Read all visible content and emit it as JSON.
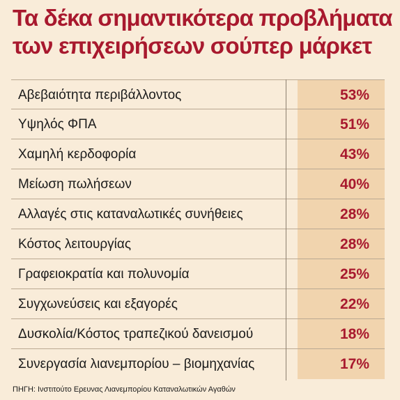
{
  "chart_data": {
    "type": "table",
    "title": "Τα δέκα σημαντικότερα προβλήματα των επιχειρήσεων σούπερ μάρκετ",
    "title_lines": [
      "Τα δέκα σημαντικότερα προβλήματα",
      "των επιχειρήσεων σούπερ μάρκετ"
    ],
    "rows": [
      {
        "label": "Αβεβαιότητα περιβάλλοντος",
        "value": 53,
        "display": "53%"
      },
      {
        "label": "Υψηλός ΦΠΑ",
        "value": 51,
        "display": "51%"
      },
      {
        "label": "Χαμηλή κερδοφορία",
        "value": 43,
        "display": "43%"
      },
      {
        "label": "Μείωση πωλήσεων",
        "value": 40,
        "display": "40%"
      },
      {
        "label": "Αλλαγές στις καταναλωτικές συνήθειες",
        "value": 28,
        "display": "28%"
      },
      {
        "label": "Κόστος λειτουργίας",
        "value": 28,
        "display": "28%"
      },
      {
        "label": "Γραφειοκρατία και πολυνομία",
        "value": 25,
        "display": "25%"
      },
      {
        "label": "Συγχωνεύσεις και εξαγορές",
        "value": 22,
        "display": "22%"
      },
      {
        "label": "Δυσκολία/Κόστος τραπεζικού δανεισμού",
        "value": 18,
        "display": "18%"
      },
      {
        "label": "Συνεργασία λιανεμπορίου – βιομηχανίας",
        "value": 17,
        "display": "17%"
      }
    ],
    "source": "ΠΗΓΗ: Ινστιτούτο Ερευνας Λιανεμπορίου Καταναλωτικών Αγαθών"
  },
  "colors": {
    "background": "#f9ecd9",
    "value_column": "#f1d4ae",
    "accent": "#a8192e",
    "text": "#1b1b1b"
  }
}
